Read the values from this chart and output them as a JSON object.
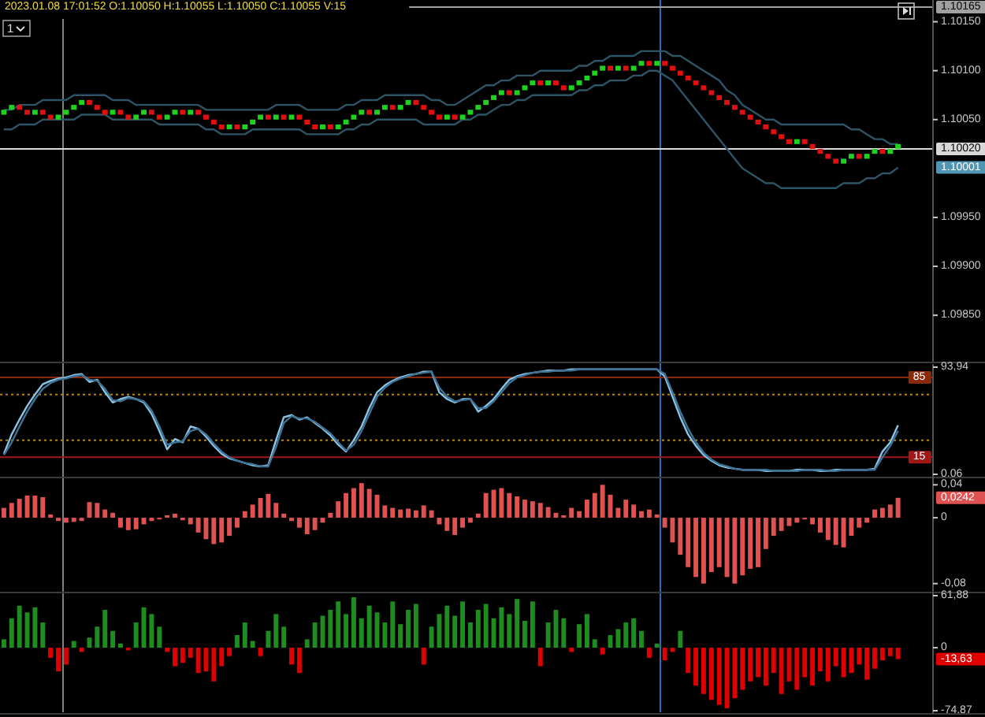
{
  "chart_data": [
    {
      "type": "candlestick",
      "annotations": [
        "2023.01.08 17:01:52 O:1.10050 H:1.10055 L:1.10050 C:1.10055 V:15",
        "1",
        "1.10001"
      ],
      "categories": [
        null,
        null,
        null,
        null,
        null,
        null,
        null,
        null,
        null,
        null,
        null,
        null,
        null,
        null,
        null,
        null,
        null,
        null,
        null,
        null,
        null,
        null,
        null,
        null,
        null,
        null,
        null,
        null,
        null,
        null,
        null,
        null,
        null,
        null,
        null,
        null,
        null,
        null,
        null,
        null,
        null,
        null,
        null,
        null,
        null,
        null,
        null,
        null,
        null,
        null,
        null,
        null,
        null,
        null,
        null,
        null,
        null,
        null,
        null,
        null,
        null,
        null,
        null,
        null,
        null,
        null,
        null,
        null,
        null,
        null,
        null,
        null,
        null,
        null,
        null,
        null,
        null,
        null,
        null,
        null,
        null,
        null,
        null,
        null,
        null,
        null,
        null,
        null,
        null,
        null,
        null,
        null,
        null,
        null,
        null,
        null,
        null,
        null,
        null,
        null,
        null,
        null,
        null,
        null,
        null,
        null,
        null,
        null,
        null,
        null,
        null,
        null,
        null,
        null,
        null,
        null
      ],
      "colors": [
        "#1ed21e",
        "#1ed21e",
        "#e01010",
        "#e01010",
        "#1ed21e",
        "#e01010",
        "#e01010",
        "#1ed21e",
        "#1ed21e",
        "#1ed21e",
        "#1ed21e",
        "#e01010",
        "#e01010",
        "#e01010",
        "#1ed21e",
        "#e01010",
        "#e01010",
        "#1ed21e",
        "#1ed21e",
        "#e01010",
        "#e01010",
        "#1ed21e",
        "#1ed21e",
        "#e01010",
        "#1ed21e",
        "#e01010",
        "#e01010",
        "#e01010",
        "#e01010",
        "#1ed21e",
        "#e01010",
        "#1ed21e",
        "#1ed21e",
        "#1ed21e",
        "#e01010",
        "#1ed21e",
        "#e01010",
        "#1ed21e",
        "#e01010",
        "#e01010",
        "#e01010",
        "#1ed21e",
        "#e01010",
        "#1ed21e",
        "#1ed21e",
        "#1ed21e",
        "#1ed21e",
        "#e01010",
        "#1ed21e",
        "#1ed21e",
        "#e01010",
        "#1ed21e",
        "#1ed21e",
        "#e01010",
        "#e01010",
        "#e01010",
        "#e01010",
        "#1ed21e",
        "#e01010",
        "#1ed21e",
        "#1ed21e",
        "#1ed21e",
        "#1ed21e",
        "#1ed21e",
        "#1ed21e",
        "#e01010",
        "#1ed21e",
        "#1ed21e",
        "#1ed21e",
        "#e01010",
        "#1ed21e",
        "#e01010",
        "#e01010",
        "#1ed21e",
        "#1ed21e",
        "#1ed21e",
        "#1ed21e",
        "#1ed21e",
        "#e01010",
        "#1ed21e",
        "#e01010",
        "#1ed21e",
        "#1ed21e",
        "#e01010",
        "#1ed21e",
        "#e01010",
        "#e01010",
        "#e01010",
        "#e01010",
        "#e01010",
        "#e01010",
        "#e01010",
        "#e01010",
        "#e01010",
        "#e01010",
        "#e01010",
        "#e01010",
        "#e01010",
        "#e01010",
        "#e01010",
        "#e01010",
        "#e01010",
        "#1ed21e",
        "#e01010",
        "#e01010",
        "#e01010",
        "#e01010",
        "#e01010",
        "#1ed21e",
        "#1ed21e",
        "#e01010",
        "#1ed21e",
        "#1ed21e",
        "#e01010",
        "#1ed21e",
        "#1ed21e"
      ],
      "ohlc": [
        [
          1.10055,
          1.1006,
          1.10055,
          1.1006
        ],
        [
          1.1006,
          1.10065,
          1.1006,
          1.10065
        ],
        [
          1.10065,
          1.10065,
          1.1006,
          1.1006
        ],
        [
          1.1006,
          1.1006,
          1.10055,
          1.10055
        ],
        [
          1.10055,
          1.1006,
          1.10055,
          1.1006
        ],
        [
          1.1006,
          1.1006,
          1.10055,
          1.10055
        ],
        [
          1.10055,
          1.10055,
          1.1005,
          1.1005
        ],
        [
          1.1005,
          1.10055,
          1.1005,
          1.10055
        ],
        [
          1.10055,
          1.1006,
          1.10055,
          1.1006
        ],
        [
          1.1006,
          1.10065,
          1.1006,
          1.10065
        ],
        [
          1.10065,
          1.1007,
          1.10065,
          1.1007
        ],
        [
          1.1007,
          1.1007,
          1.10065,
          1.10065
        ],
        [
          1.10065,
          1.10065,
          1.1006,
          1.1006
        ],
        [
          1.1006,
          1.1006,
          1.10055,
          1.10055
        ],
        [
          1.10055,
          1.1006,
          1.10055,
          1.1006
        ],
        [
          1.1006,
          1.1006,
          1.10055,
          1.10055
        ],
        [
          1.10055,
          1.10055,
          1.1005,
          1.1005
        ],
        [
          1.1005,
          1.10055,
          1.1005,
          1.10055
        ],
        [
          1.10055,
          1.1006,
          1.10055,
          1.1006
        ],
        [
          1.1006,
          1.1006,
          1.10055,
          1.10055
        ],
        [
          1.10055,
          1.10055,
          1.1005,
          1.1005
        ],
        [
          1.1005,
          1.10055,
          1.1005,
          1.10055
        ],
        [
          1.10055,
          1.1006,
          1.10055,
          1.1006
        ],
        [
          1.1006,
          1.1006,
          1.10055,
          1.10055
        ],
        [
          1.10055,
          1.1006,
          1.10055,
          1.1006
        ],
        [
          1.1006,
          1.1006,
          1.10055,
          1.10055
        ],
        [
          1.10055,
          1.10055,
          1.1005,
          1.1005
        ],
        [
          1.1005,
          1.1005,
          1.10045,
          1.10045
        ],
        [
          1.10045,
          1.10045,
          1.1004,
          1.1004
        ],
        [
          1.1004,
          1.10045,
          1.1004,
          1.10045
        ],
        [
          1.10045,
          1.10045,
          1.1004,
          1.1004
        ],
        [
          1.1004,
          1.10045,
          1.1004,
          1.10045
        ],
        [
          1.10045,
          1.1005,
          1.10045,
          1.1005
        ],
        [
          1.1005,
          1.10055,
          1.1005,
          1.10055
        ],
        [
          1.10055,
          1.10055,
          1.1005,
          1.1005
        ],
        [
          1.1005,
          1.10055,
          1.1005,
          1.10055
        ],
        [
          1.10055,
          1.10055,
          1.1005,
          1.1005
        ],
        [
          1.1005,
          1.10055,
          1.1005,
          1.10055
        ],
        [
          1.10055,
          1.10055,
          1.1005,
          1.1005
        ],
        [
          1.1005,
          1.1005,
          1.10045,
          1.10045
        ],
        [
          1.10045,
          1.10045,
          1.1004,
          1.1004
        ],
        [
          1.1004,
          1.10045,
          1.1004,
          1.10045
        ],
        [
          1.10045,
          1.10045,
          1.1004,
          1.1004
        ],
        [
          1.1004,
          1.10045,
          1.1004,
          1.10045
        ],
        [
          1.10045,
          1.1005,
          1.10045,
          1.1005
        ],
        [
          1.1005,
          1.10055,
          1.1005,
          1.10055
        ],
        [
          1.10055,
          1.1006,
          1.10055,
          1.1006
        ],
        [
          1.1006,
          1.1006,
          1.10055,
          1.10055
        ],
        [
          1.10055,
          1.1006,
          1.10055,
          1.1006
        ],
        [
          1.1006,
          1.10065,
          1.1006,
          1.10065
        ],
        [
          1.10065,
          1.10065,
          1.1006,
          1.1006
        ],
        [
          1.1006,
          1.10065,
          1.1006,
          1.10065
        ],
        [
          1.10065,
          1.1007,
          1.10065,
          1.1007
        ],
        [
          1.1007,
          1.1007,
          1.10065,
          1.10065
        ],
        [
          1.10065,
          1.10065,
          1.1006,
          1.1006
        ],
        [
          1.1006,
          1.1006,
          1.10055,
          1.10055
        ],
        [
          1.10055,
          1.10055,
          1.1005,
          1.1005
        ],
        [
          1.1005,
          1.10055,
          1.1005,
          1.10055
        ],
        [
          1.10055,
          1.10055,
          1.1005,
          1.1005
        ],
        [
          1.1005,
          1.10055,
          1.1005,
          1.10055
        ],
        [
          1.10055,
          1.1006,
          1.10055,
          1.1006
        ],
        [
          1.1006,
          1.10065,
          1.1006,
          1.10065
        ],
        [
          1.10065,
          1.1007,
          1.10065,
          1.1007
        ],
        [
          1.1007,
          1.10075,
          1.1007,
          1.10075
        ],
        [
          1.10075,
          1.1008,
          1.10075,
          1.1008
        ],
        [
          1.1008,
          1.1008,
          1.10075,
          1.10075
        ],
        [
          1.10075,
          1.1008,
          1.10075,
          1.1008
        ],
        [
          1.1008,
          1.10085,
          1.1008,
          1.10085
        ],
        [
          1.10085,
          1.1009,
          1.10085,
          1.1009
        ],
        [
          1.1009,
          1.1009,
          1.10085,
          1.10085
        ],
        [
          1.10085,
          1.1009,
          1.10085,
          1.1009
        ],
        [
          1.1009,
          1.1009,
          1.10085,
          1.10085
        ],
        [
          1.10085,
          1.10085,
          1.1008,
          1.1008
        ],
        [
          1.1008,
          1.10085,
          1.1008,
          1.10085
        ],
        [
          1.10085,
          1.1009,
          1.10085,
          1.1009
        ],
        [
          1.1009,
          1.10095,
          1.1009,
          1.10095
        ],
        [
          1.10095,
          1.101,
          1.10095,
          1.101
        ],
        [
          1.101,
          1.10105,
          1.101,
          1.10105
        ],
        [
          1.10105,
          1.10105,
          1.101,
          1.101
        ],
        [
          1.101,
          1.10105,
          1.101,
          1.10105
        ],
        [
          1.10105,
          1.10105,
          1.101,
          1.101
        ],
        [
          1.101,
          1.10105,
          1.101,
          1.10105
        ],
        [
          1.10105,
          1.1011,
          1.10105,
          1.1011
        ],
        [
          1.1011,
          1.1011,
          1.10105,
          1.10105
        ],
        [
          1.10105,
          1.1011,
          1.10105,
          1.1011
        ],
        [
          1.1011,
          1.1011,
          1.10105,
          1.10105
        ],
        [
          1.10105,
          1.10105,
          1.101,
          1.101
        ],
        [
          1.101,
          1.101,
          1.10095,
          1.10095
        ],
        [
          1.10095,
          1.10095,
          1.1009,
          1.1009
        ],
        [
          1.1009,
          1.1009,
          1.10085,
          1.10085
        ],
        [
          1.10085,
          1.10085,
          1.1008,
          1.1008
        ],
        [
          1.1008,
          1.1008,
          1.10075,
          1.10075
        ],
        [
          1.10075,
          1.10075,
          1.1007,
          1.1007
        ],
        [
          1.1007,
          1.1007,
          1.10065,
          1.10065
        ],
        [
          1.10065,
          1.10065,
          1.1006,
          1.1006
        ],
        [
          1.1006,
          1.1006,
          1.10055,
          1.10055
        ],
        [
          1.10055,
          1.10055,
          1.1005,
          1.1005
        ],
        [
          1.1005,
          1.1005,
          1.10045,
          1.10045
        ],
        [
          1.10045,
          1.10045,
          1.1004,
          1.1004
        ],
        [
          1.1004,
          1.1004,
          1.10035,
          1.10035
        ],
        [
          1.10035,
          1.10035,
          1.1003,
          1.1003
        ],
        [
          1.1003,
          1.1003,
          1.10025,
          1.10025
        ],
        [
          1.10025,
          1.1003,
          1.10025,
          1.1003
        ],
        [
          1.1003,
          1.1003,
          1.10025,
          1.10025
        ],
        [
          1.10025,
          1.10025,
          1.1002,
          1.1002
        ],
        [
          1.1002,
          1.1002,
          1.10015,
          1.10015
        ],
        [
          1.10015,
          1.10015,
          1.1001,
          1.1001
        ],
        [
          1.1001,
          1.1001,
          1.10005,
          1.10005
        ],
        [
          1.10005,
          1.1001,
          1.10005,
          1.1001
        ],
        [
          1.1001,
          1.10015,
          1.1001,
          1.10015
        ],
        [
          1.10015,
          1.10015,
          1.1001,
          1.1001
        ],
        [
          1.1001,
          1.10015,
          1.1001,
          1.10015
        ],
        [
          1.10015,
          1.1002,
          1.10015,
          1.1002
        ],
        [
          1.1002,
          1.1002,
          1.10015,
          1.10015
        ],
        [
          1.10015,
          1.1002,
          1.10015,
          1.1002
        ],
        [
          1.1002,
          1.10025,
          1.1002,
          1.10025
        ]
      ],
      "series": [
        {
          "type": "line",
          "color": "#2d5566",
          "values": [
            1.1006,
            1.1006,
            1.10065,
            1.10065,
            1.10065,
            1.1007,
            1.1007,
            1.1007,
            1.1007,
            1.10075,
            1.10075,
            1.10075,
            1.10075,
            1.10075,
            1.1007,
            1.1007,
            1.1007,
            1.10065,
            1.10065,
            1.10065,
            1.10065,
            1.10065,
            1.10065,
            1.10065,
            1.10065,
            1.10065,
            1.1006,
            1.1006,
            1.1006,
            1.1006,
            1.1006,
            1.1006,
            1.1006,
            1.1006,
            1.1006,
            1.10065,
            1.10065,
            1.10065,
            1.10065,
            1.1006,
            1.1006,
            1.1006,
            1.1006,
            1.1006,
            1.10065,
            1.10065,
            1.1007,
            1.1007,
            1.1007,
            1.10075,
            1.10075,
            1.10075,
            1.10075,
            1.10075,
            1.10075,
            1.1007,
            1.1007,
            1.10065,
            1.10065,
            1.1007,
            1.10075,
            1.1008,
            1.10085,
            1.10085,
            1.1009,
            1.1009,
            1.10095,
            1.10095,
            1.10095,
            1.101,
            1.101,
            1.101,
            1.101,
            1.101,
            1.10105,
            1.10105,
            1.1011,
            1.1011,
            1.10115,
            1.10115,
            1.10115,
            1.10115,
            1.1012,
            1.1012,
            1.1012,
            1.1012,
            1.10115,
            1.10115,
            1.1011,
            1.10105,
            1.101,
            1.10095,
            1.1009,
            1.1008,
            1.10075,
            1.10065,
            1.1006,
            1.10055,
            1.1005,
            1.1005,
            1.10045,
            1.10045,
            1.10045,
            1.10045,
            1.10045,
            1.10045,
            1.10045,
            1.10045,
            1.10045,
            1.1004,
            1.1004,
            1.10035,
            1.1003,
            1.1003,
            1.10025,
            1.10025
          ]
        },
        {
          "type": "line",
          "color": "#2d5566",
          "values": [
            1.1004,
            1.1004,
            1.10045,
            1.10045,
            1.10045,
            1.1005,
            1.1005,
            1.1005,
            1.1005,
            1.1005,
            1.10055,
            1.10055,
            1.10055,
            1.10055,
            1.1005,
            1.1005,
            1.1005,
            1.1005,
            1.1005,
            1.1005,
            1.10045,
            1.10045,
            1.10045,
            1.10045,
            1.10045,
            1.10045,
            1.1004,
            1.1004,
            1.10035,
            1.10035,
            1.10035,
            1.10035,
            1.1004,
            1.1004,
            1.1004,
            1.1004,
            1.1004,
            1.1004,
            1.1004,
            1.10035,
            1.10035,
            1.10035,
            1.10035,
            1.10035,
            1.1004,
            1.1004,
            1.10045,
            1.10045,
            1.1005,
            1.1005,
            1.1005,
            1.1005,
            1.1005,
            1.1005,
            1.10045,
            1.10045,
            1.10045,
            1.10045,
            1.10045,
            1.1005,
            1.1005,
            1.10055,
            1.10055,
            1.1006,
            1.10065,
            1.10065,
            1.1007,
            1.1007,
            1.10075,
            1.10075,
            1.10075,
            1.10075,
            1.10075,
            1.10075,
            1.1008,
            1.1008,
            1.10085,
            1.10085,
            1.1009,
            1.1009,
            1.1009,
            1.10095,
            1.10095,
            1.101,
            1.101,
            1.10095,
            1.1009,
            1.1008,
            1.1007,
            1.1006,
            1.1005,
            1.1004,
            1.1003,
            1.1002,
            1.1001,
            1.1,
            1.09995,
            1.0999,
            1.09985,
            1.09985,
            1.0998,
            1.0998,
            1.0998,
            1.0998,
            1.0998,
            1.0998,
            1.0998,
            1.0998,
            1.09985,
            1.09985,
            1.09985,
            1.0999,
            1.0999,
            1.09995,
            1.09995,
            1.10001
          ]
        }
      ],
      "ylim": [
        1.09805,
        1.10169
      ],
      "yticks": [
        {
          "value": 1.1015,
          "label": "1.10150"
        },
        {
          "value": 1.101,
          "label": "1.10100"
        },
        {
          "value": 1.1005,
          "label": "1.10050"
        },
        {
          "value": 1.0995,
          "label": "1.09950"
        },
        {
          "value": 1.099,
          "label": "1.09900"
        },
        {
          "value": 1.0985,
          "label": "1.09850"
        }
      ],
      "tick_labels": "y",
      "ref_lines": [
        {
          "axis": "y",
          "value": 1.10165,
          "label": "1.10165",
          "color": "#a0a0a0"
        },
        {
          "axis": "y",
          "value": 1.1002,
          "label": "1.10020",
          "color": "#d8d8d8"
        }
      ]
    },
    {
      "type": "line",
      "categories": [
        null,
        null,
        null,
        null,
        null,
        null,
        null,
        null,
        null,
        null,
        null,
        null,
        null,
        null,
        null,
        null,
        null,
        null,
        null,
        null,
        null,
        null,
        null,
        null,
        null,
        null,
        null,
        null,
        null,
        null,
        null,
        null,
        null,
        null,
        null,
        null,
        null,
        null,
        null,
        null,
        null,
        null,
        null,
        null,
        null,
        null,
        null,
        null,
        null,
        null,
        null,
        null,
        null,
        null,
        null,
        null,
        null,
        null,
        null,
        null,
        null,
        null,
        null,
        null,
        null,
        null,
        null,
        null,
        null,
        null,
        null,
        null,
        null,
        null,
        null,
        null,
        null,
        null,
        null,
        null,
        null,
        null,
        null,
        null,
        null,
        null,
        null,
        null,
        null,
        null,
        null,
        null,
        null,
        null,
        null,
        null,
        null,
        null,
        null,
        null,
        null,
        null,
        null,
        null,
        null,
        null,
        null,
        null,
        null,
        null,
        null,
        null,
        null,
        null,
        null,
        null
      ],
      "series": [
        {
          "color": "#8cc4e6",
          "values": [
            18,
            35,
            48,
            60,
            70,
            79,
            82,
            84,
            85,
            87,
            88,
            81,
            83,
            72,
            63,
            66,
            68,
            66,
            63,
            53,
            38,
            22,
            31,
            28,
            42,
            40,
            33,
            25,
            18,
            14,
            12,
            10,
            8,
            7,
            8,
            30,
            50,
            52,
            48,
            50,
            45,
            40,
            34,
            26,
            20,
            30,
            42,
            58,
            72,
            78,
            82,
            85,
            87,
            88,
            90,
            90,
            72,
            66,
            63,
            66,
            66,
            55,
            60,
            66,
            75,
            83,
            86,
            88,
            89,
            90,
            91,
            91,
            91,
            92,
            92,
            92,
            92,
            92,
            92,
            92,
            92,
            92,
            92,
            92,
            92,
            86,
            68,
            50,
            35,
            25,
            17,
            12,
            8,
            6,
            5,
            4,
            4,
            4,
            3,
            3,
            3,
            3,
            4,
            4,
            4,
            3,
            3,
            4,
            4,
            4,
            4,
            4,
            5,
            20,
            28,
            43
          ]
        },
        {
          "color": "#3f7396",
          "values": [
            17,
            28,
            42,
            55,
            66,
            75,
            80,
            83,
            84,
            86,
            87,
            83,
            82,
            75,
            65,
            64,
            67,
            66,
            64,
            56,
            42,
            26,
            28,
            29,
            38,
            40,
            35,
            27,
            20,
            15,
            12,
            10,
            9,
            7,
            7,
            24,
            45,
            51,
            49,
            49,
            46,
            41,
            36,
            28,
            21,
            26,
            38,
            53,
            68,
            76,
            81,
            84,
            86,
            88,
            89,
            90,
            76,
            68,
            64,
            65,
            66,
            58,
            58,
            64,
            72,
            80,
            85,
            87,
            89,
            90,
            90,
            91,
            91,
            91,
            92,
            92,
            92,
            92,
            92,
            92,
            92,
            92,
            92,
            92,
            92,
            88,
            72,
            55,
            40,
            28,
            19,
            13,
            9,
            7,
            5,
            4,
            4,
            4,
            4,
            3,
            3,
            3,
            3,
            4,
            4,
            4,
            3,
            3,
            4,
            4,
            4,
            4,
            4,
            15,
            25,
            38
          ]
        }
      ],
      "ylim": [
        0.06,
        93.94
      ],
      "yticks": [
        {
          "value": 93.94,
          "label": "93,94"
        },
        {
          "value": 0.06,
          "label": "0,06"
        }
      ],
      "tick_labels": "y",
      "ref_lines": [
        {
          "axis": "y",
          "value": 85,
          "label": "85",
          "color": "#8b2a0a"
        },
        {
          "axis": "y",
          "value": 70,
          "color": "#b8860b",
          "line_style": "dotted"
        },
        {
          "axis": "y",
          "value": 30,
          "color": "#b8860b",
          "line_style": "dotted"
        },
        {
          "axis": "y",
          "value": 15,
          "label": "15",
          "color": "#a01818"
        }
      ]
    },
    {
      "type": "bar",
      "annotations": [
        "0,0242"
      ],
      "categories": [
        null,
        null,
        null,
        null,
        null,
        null,
        null,
        null,
        null,
        null,
        null,
        null,
        null,
        null,
        null,
        null,
        null,
        null,
        null,
        null,
        null,
        null,
        null,
        null,
        null,
        null,
        null,
        null,
        null,
        null,
        null,
        null,
        null,
        null,
        null,
        null,
        null,
        null,
        null,
        null,
        null,
        null,
        null,
        null,
        null,
        null,
        null,
        null,
        null,
        null,
        null,
        null,
        null,
        null,
        null,
        null,
        null,
        null,
        null,
        null,
        null,
        null,
        null,
        null,
        null,
        null,
        null,
        null,
        null,
        null,
        null,
        null,
        null,
        null,
        null,
        null,
        null,
        null,
        null,
        null,
        null,
        null,
        null,
        null,
        null,
        null,
        null,
        null,
        null,
        null,
        null,
        null,
        null,
        null,
        null,
        null,
        null,
        null,
        null,
        null,
        null,
        null,
        null,
        null,
        null,
        null,
        null,
        null,
        null,
        null,
        null,
        null,
        null,
        null,
        null,
        null
      ],
      "color": "#e05252",
      "values": [
        0.012,
        0.018,
        0.023,
        0.027,
        0.027,
        0.025,
        0.004,
        -0.004,
        -0.006,
        -0.005,
        -0.004,
        0.019,
        0.018,
        0.01,
        0.006,
        -0.012,
        -0.015,
        -0.014,
        -0.008,
        -0.004,
        -0.002,
        0.003,
        0.005,
        -0.003,
        -0.008,
        -0.018,
        -0.026,
        -0.032,
        -0.03,
        -0.022,
        -0.012,
        0.008,
        0.016,
        0.024,
        0.029,
        0.018,
        0.005,
        -0.004,
        -0.012,
        -0.02,
        -0.015,
        -0.006,
        0.006,
        0.02,
        0.03,
        0.036,
        0.042,
        0.035,
        0.028,
        0.015,
        0.012,
        0.01,
        0.011,
        0.009,
        0.015,
        0.009,
        -0.008,
        -0.016,
        -0.021,
        -0.012,
        -0.006,
        0.005,
        0.03,
        0.034,
        0.036,
        0.03,
        0.026,
        0.022,
        0.02,
        0.018,
        0.013,
        0.006,
        0.003,
        0.012,
        0.008,
        0.022,
        0.03,
        0.04,
        0.028,
        0.012,
        0.022,
        0.016,
        0.008,
        0.01,
        0.004,
        -0.012,
        -0.03,
        -0.045,
        -0.06,
        -0.072,
        -0.08,
        -0.066,
        -0.06,
        -0.072,
        -0.08,
        -0.07,
        -0.062,
        -0.06,
        -0.038,
        -0.022,
        -0.016,
        -0.01,
        -0.006,
        -0.002,
        -0.008,
        -0.018,
        -0.027,
        -0.033,
        -0.036,
        -0.022,
        -0.012,
        -0.006,
        0.01,
        0.012,
        0.016,
        0.0242
      ],
      "ylim": [
        -0.087,
        0.047
      ],
      "yticks": [
        {
          "value": 0.04,
          "label": "0,04"
        },
        0,
        {
          "value": -0.08,
          "label": "-0,08"
        }
      ],
      "tick_labels": "y"
    },
    {
      "type": "bar",
      "annotations": [
        "-13,63"
      ],
      "categories": [
        null,
        null,
        null,
        null,
        null,
        null,
        null,
        null,
        null,
        null,
        null,
        null,
        null,
        null,
        null,
        null,
        null,
        null,
        null,
        null,
        null,
        null,
        null,
        null,
        null,
        null,
        null,
        null,
        null,
        null,
        null,
        null,
        null,
        null,
        null,
        null,
        null,
        null,
        null,
        null,
        null,
        null,
        null,
        null,
        null,
        null,
        null,
        null,
        null,
        null,
        null,
        null,
        null,
        null,
        null,
        null,
        null,
        null,
        null,
        null,
        null,
        null,
        null,
        null,
        null,
        null,
        null,
        null,
        null,
        null,
        null,
        null,
        null,
        null,
        null,
        null,
        null,
        null,
        null,
        null,
        null,
        null,
        null,
        null,
        null,
        null,
        null,
        null,
        null,
        null,
        null,
        null,
        null,
        null,
        null,
        null,
        null,
        null,
        null,
        null,
        null,
        null,
        null,
        null,
        null,
        null,
        null,
        null,
        null,
        null,
        null,
        null,
        null,
        null,
        null,
        null
      ],
      "series": [
        {
          "color": "#1f8c1f",
          "values": [
            10,
            35,
            50,
            42,
            48,
            30,
            null,
            null,
            null,
            8,
            null,
            12,
            25,
            45,
            20,
            5,
            null,
            30,
            48,
            40,
            25,
            null,
            null,
            null,
            null,
            null,
            null,
            null,
            null,
            null,
            15,
            30,
            8,
            null,
            20,
            40,
            25,
            null,
            null,
            10,
            30,
            38,
            45,
            55,
            40,
            60,
            35,
            50,
            42,
            30,
            55,
            28,
            45,
            52,
            null,
            25,
            40,
            50,
            38,
            55,
            30,
            45,
            52,
            35,
            48,
            40,
            58,
            32,
            55,
            null,
            30,
            45,
            35,
            null,
            28,
            40,
            10,
            null,
            15,
            22,
            30,
            35,
            20,
            null,
            5,
            null,
            null,
            20,
            null,
            null,
            null,
            null,
            null,
            null,
            null,
            null,
            null,
            null,
            null,
            null,
            null,
            null,
            null,
            null,
            null,
            null,
            null,
            null,
            null,
            null,
            null,
            null,
            null,
            null,
            null,
            null
          ]
        },
        {
          "color": "#e00000",
          "values": [
            null,
            null,
            null,
            null,
            null,
            null,
            -12,
            -28,
            -20,
            null,
            -5,
            null,
            null,
            null,
            null,
            null,
            -3,
            null,
            null,
            null,
            null,
            -5,
            -22,
            -18,
            -12,
            -30,
            -28,
            -40,
            -22,
            -10,
            null,
            null,
            null,
            -10,
            null,
            null,
            null,
            -20,
            -30,
            null,
            null,
            null,
            null,
            null,
            null,
            null,
            null,
            null,
            null,
            null,
            null,
            null,
            null,
            null,
            -20,
            null,
            null,
            null,
            null,
            null,
            null,
            null,
            null,
            null,
            null,
            null,
            null,
            null,
            null,
            -22,
            null,
            null,
            null,
            -5,
            null,
            null,
            null,
            -8,
            null,
            null,
            null,
            null,
            null,
            -12,
            null,
            -15,
            -5,
            null,
            -30,
            -45,
            -55,
            -62,
            -68,
            -72,
            -60,
            -50,
            -40,
            -35,
            -45,
            -30,
            -55,
            -40,
            -50,
            -35,
            -45,
            -28,
            -40,
            -22,
            -35,
            -30,
            -20,
            -38,
            -25,
            -15,
            -10,
            -13.63
          ]
        }
      ],
      "ylim": [
        -74.87,
        61.88
      ],
      "yticks": [
        {
          "value": 61.88,
          "label": "61,88"
        },
        0,
        {
          "value": -74.87,
          "label": "-74,87"
        }
      ],
      "tick_labels": "y"
    }
  ]
}
